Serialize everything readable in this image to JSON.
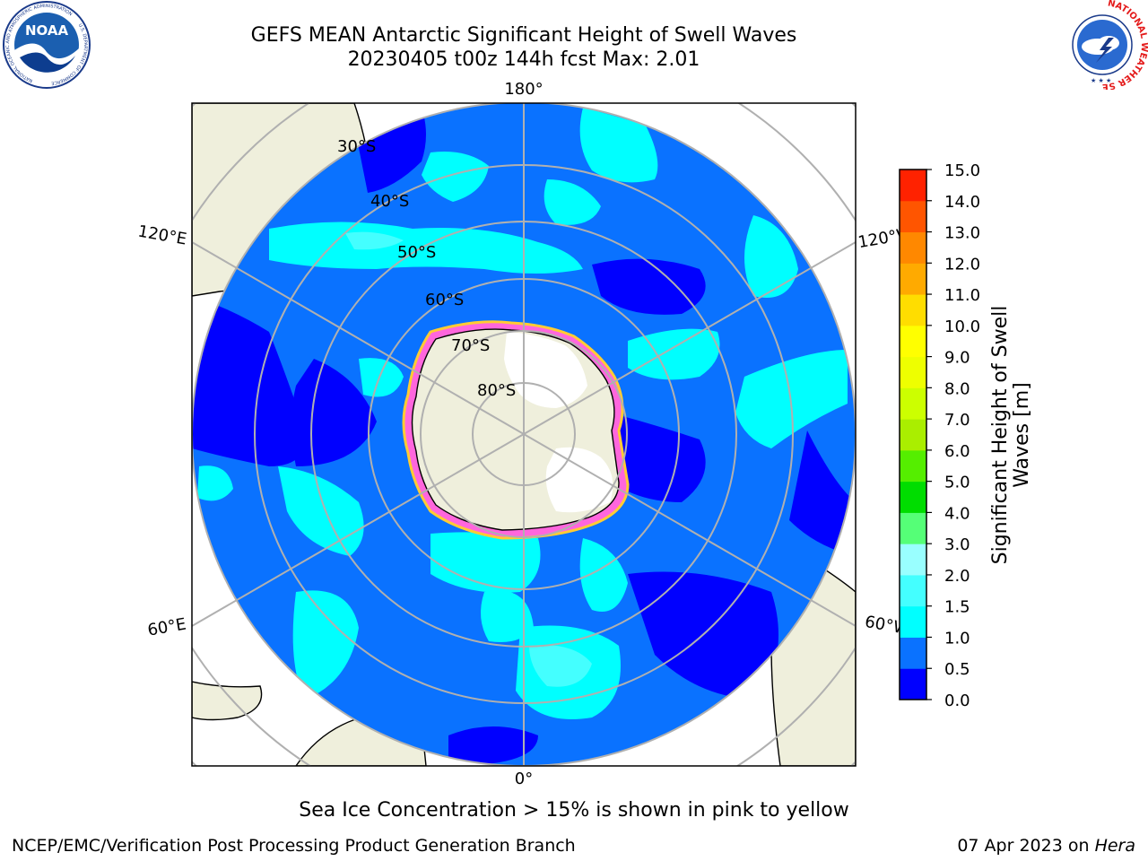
{
  "header": {
    "title": "GEFS MEAN Antarctic Significant Height of Swell Waves",
    "subtitle": "20230405 t00z 144h fcst   Max: 2.01"
  },
  "logos": {
    "noaa": {
      "text": "NOAA",
      "ring_text": "NATIONAL OCEANIC AND ATMOSPHERIC ADMINISTRATION",
      "ring_text_bottom": "U.S. DEPARTMENT OF COMMERCE"
    },
    "nws": {
      "ring_text": "NATIONAL WEATHER SERVICE"
    }
  },
  "map": {
    "latitude_labels": [
      "30°S",
      "40°S",
      "50°S",
      "60°S",
      "70°S",
      "80°S"
    ],
    "longitude_labels": {
      "top": "180°",
      "bottom": "0°",
      "upper_left": "120°E",
      "upper_right": "120°W",
      "lower_left": "60°E",
      "lower_right": "60°W"
    }
  },
  "colorbar": {
    "label": "Significant Height of Swell Waves [m]",
    "ticks": [
      "0.0",
      "0.5",
      "1.0",
      "1.5",
      "2.0",
      "3.0",
      "4.0",
      "5.0",
      "6.0",
      "7.0",
      "8.0",
      "9.0",
      "10.0",
      "11.0",
      "12.0",
      "13.0",
      "14.0",
      "15.0"
    ],
    "colors": [
      "#0000ff",
      "#0a72ff",
      "#00ffff",
      "#44ffff",
      "#99ffff",
      "#55ff77",
      "#00dd00",
      "#55ee00",
      "#aaee00",
      "#ccff00",
      "#eeff00",
      "#ffff00",
      "#ffdd00",
      "#ffaa00",
      "#ff8800",
      "#ff5500",
      "#ff2200",
      "#ff0000"
    ]
  },
  "note": "Sea Ice Concentration > 15% is shown in pink to yellow",
  "footer": {
    "left": "NCEP/EMC/Verification Post Processing Product Generation Branch",
    "right_date": "07 Apr 2023 on",
    "right_system": "Hera"
  }
}
